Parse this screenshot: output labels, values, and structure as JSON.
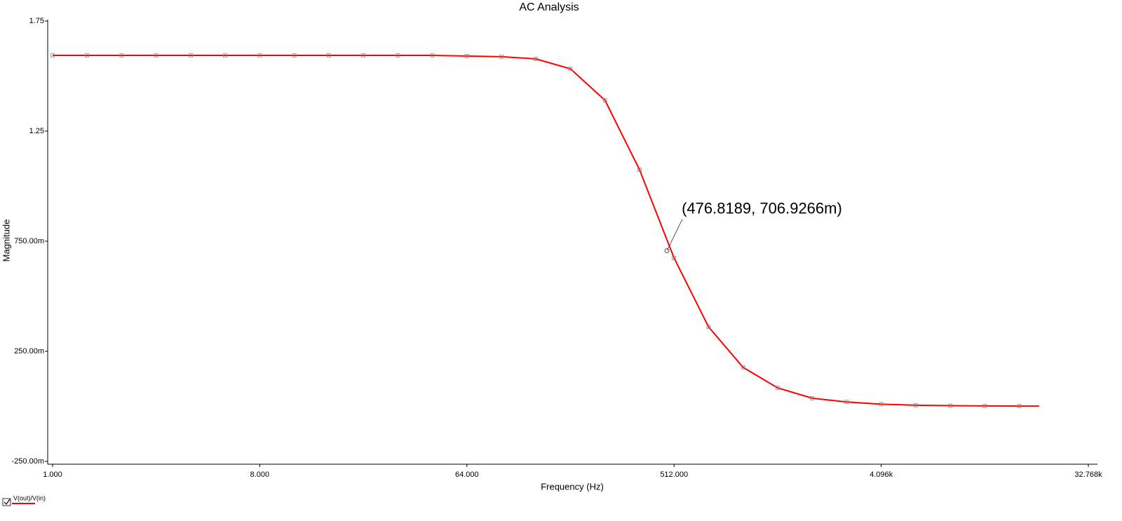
{
  "chart_data": {
    "type": "line",
    "title": "AC Analysis",
    "x_label": "Frequency (Hz)",
    "y_label": "Magnitude",
    "log_x": true,
    "grid": false,
    "legend": "bottom-left",
    "xlim": [
      1,
      32768
    ],
    "ylim": [
      -0.25,
      1.75
    ],
    "xticks": [
      {
        "value": 1,
        "label": "1.000"
      },
      {
        "value": 8,
        "label": "8.000"
      },
      {
        "value": 64,
        "label": "64.000"
      },
      {
        "value": 512,
        "label": "512.000"
      },
      {
        "value": 4096,
        "label": "4.096k"
      },
      {
        "value": 32768,
        "label": "32.768k"
      }
    ],
    "yticks": [
      {
        "value": -0.25,
        "label": "-250.00m"
      },
      {
        "value": 0.25,
        "label": "250.00m"
      },
      {
        "value": 0.75,
        "label": "750.00m"
      },
      1.25,
      1.75
    ],
    "x": [
      1,
      1.414,
      2,
      2.828,
      4,
      5.657,
      8,
      11.31,
      16,
      22.63,
      32,
      45.25,
      64,
      90.51,
      128,
      181,
      256,
      362,
      512,
      724,
      1024,
      1448,
      2048,
      2896,
      4096,
      5793,
      8192,
      11585,
      16384,
      20000
    ],
    "series": [
      {
        "name": "V(out)/V(in)",
        "color": "#ff0000",
        "values": [
          1.594,
          1.594,
          1.594,
          1.594,
          1.594,
          1.594,
          1.594,
          1.594,
          1.594,
          1.594,
          1.594,
          1.594,
          1.591,
          1.588,
          1.578,
          1.533,
          1.39,
          1.075,
          0.674,
          0.361,
          0.177,
          0.084,
          0.037,
          0.02,
          0.01,
          0.005,
          0.003,
          0.002,
          0.001,
          0.001
        ]
      }
    ],
    "annotation": {
      "text": "(476.8189, 706.9266m)",
      "x": 476.8189,
      "y": 0.7069266
    }
  }
}
